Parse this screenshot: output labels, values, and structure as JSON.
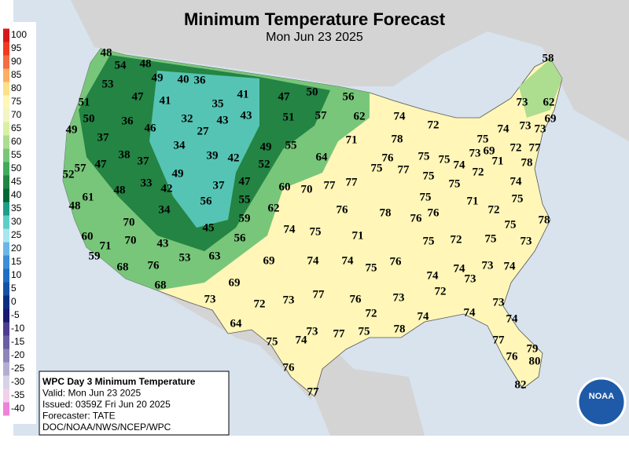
{
  "title": "Minimum Temperature Forecast",
  "subtitle": "Mon Jun 23 2025",
  "legend": {
    "labels": [
      100,
      95,
      90,
      85,
      80,
      75,
      70,
      65,
      60,
      55,
      50,
      45,
      40,
      35,
      30,
      25,
      20,
      15,
      10,
      5,
      0,
      -5,
      -10,
      -15,
      -20,
      -25,
      -30,
      -35,
      -40
    ],
    "colors": [
      "#d7191c",
      "#f03b20",
      "#f46d43",
      "#fdae61",
      "#fee08b",
      "#fff6b8",
      "#f2f5c4",
      "#d9f0a3",
      "#addd8e",
      "#78c679",
      "#41ab5d",
      "#238443",
      "#006837",
      "#1f9e89",
      "#5ecfc8",
      "#a8e6f0",
      "#6bb6e8",
      "#3b8fd6",
      "#1e6fc4",
      "#1552a3",
      "#0a2f80",
      "#1a1a70",
      "#4b3d8f",
      "#6a5fa3",
      "#8e86b8",
      "#b3aed1",
      "#d6d3e8",
      "#f2d0ea",
      "#ee82d8"
    ]
  },
  "info": {
    "lines": [
      "WPC Day 3 Minimum Temperature",
      "Valid: Mon Jun 23 2025",
      "Issued: 0359Z Fri Jun 20 2025",
      "Forecaster: TATE",
      "DOC/NOAA/NWS/NCEP/WPC"
    ]
  },
  "logo": "NOAA",
  "stations": [
    48,
    54,
    48,
    49,
    40,
    36,
    53,
    47,
    41,
    35,
    41,
    47,
    50,
    56,
    51,
    50,
    36,
    32,
    43,
    43,
    51,
    57,
    62,
    74,
    72,
    73,
    62,
    58,
    49,
    46,
    27,
    37,
    34,
    71,
    78,
    55,
    49,
    73,
    69,
    75,
    74,
    73,
    38,
    37,
    39,
    42,
    64,
    76,
    75,
    75,
    74,
    73,
    69,
    72,
    77,
    52,
    57,
    47,
    49,
    52,
    75,
    77,
    72,
    71,
    78,
    47,
    37,
    33,
    42,
    48,
    61,
    55,
    60,
    70,
    77,
    77,
    75,
    75,
    74,
    48,
    34,
    56,
    62,
    76,
    78,
    76,
    76,
    75,
    71,
    72,
    75,
    59,
    70,
    45,
    74,
    75,
    71,
    75,
    78,
    60,
    70,
    43,
    56,
    75,
    72,
    75,
    73,
    71,
    59,
    63,
    53,
    69,
    74,
    74,
    75,
    76,
    68,
    76,
    73,
    74,
    73,
    74,
    74,
    69,
    68,
    72,
    77,
    73,
    76,
    73,
    72,
    73,
    73,
    72,
    74,
    74,
    74,
    64,
    73,
    77,
    75,
    78,
    75,
    74,
    77,
    79,
    76,
    80,
    76,
    82,
    77
  ]
}
